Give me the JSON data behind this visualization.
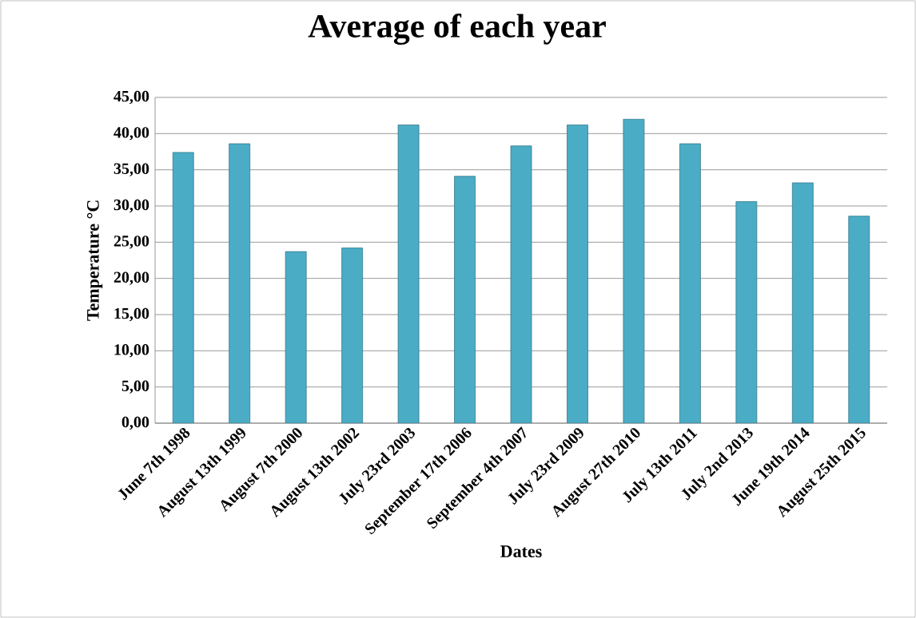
{
  "chart_data": {
    "type": "bar",
    "title": "Average of each year",
    "xlabel": "Dates",
    "ylabel": "Temperature °C",
    "categories": [
      "June 7th 1998",
      "August 13th 1999",
      "August 7th 2000",
      "August 13th 2002",
      "July 23rd 2003",
      "September 17th 2006",
      "September 4th 2007",
      "July 23rd 2009",
      "August 27th 2010",
      "July 13th 2011",
      "July 2nd 2013",
      "June 19th 2014",
      "August 25th 2015"
    ],
    "values": [
      37.4,
      38.6,
      23.7,
      24.2,
      41.2,
      34.1,
      38.3,
      41.2,
      42.0,
      38.6,
      30.6,
      33.2,
      28.6
    ],
    "color": "#4bacc6",
    "ylim": [
      0,
      45
    ],
    "yticks": [
      {
        "value": 0,
        "label": "0,00"
      },
      {
        "value": 5,
        "label": "5,00"
      },
      {
        "value": 10,
        "label": "10,00"
      },
      {
        "value": 15,
        "label": "15,00"
      },
      {
        "value": 20,
        "label": "20,00"
      },
      {
        "value": 25,
        "label": "25,00"
      },
      {
        "value": 30,
        "label": "30,00"
      },
      {
        "value": 35,
        "label": "35,00"
      },
      {
        "value": 40,
        "label": "40,00"
      },
      {
        "value": 45,
        "label": "45,00"
      }
    ],
    "grid": "y"
  }
}
